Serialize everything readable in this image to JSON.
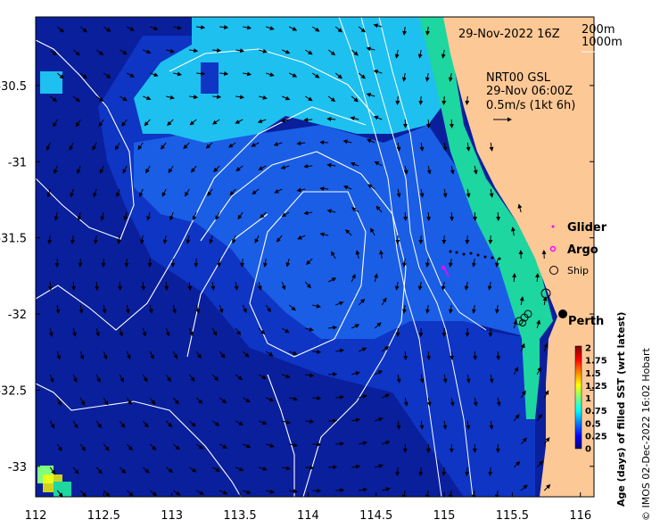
{
  "map": {
    "title": "29-Nov-2022 16Z",
    "iso_label_1": "200m",
    "iso_label_2": "1000m",
    "current_product": "NRT00 GSL",
    "current_time": "29-Nov 06:00Z",
    "current_scale": "0.5m/s (1kt 6h)",
    "x_ticks": [
      "112",
      "112.5",
      "113",
      "113.5",
      "114",
      "114.5",
      "115",
      "115.5",
      "116"
    ],
    "y_ticks": [
      "-30.5",
      "-31",
      "-31.5",
      "-32",
      "-32.5",
      "-33"
    ],
    "lon_range": [
      112,
      116.1
    ],
    "lat_range": [
      -33.2,
      -30.05
    ],
    "legend": {
      "glider": "Glider",
      "argo": "Argo",
      "ship": "Ship"
    },
    "city": "Perth",
    "colorbar": {
      "ticks": [
        "2",
        "1.75",
        "1.5",
        "1.25",
        "1",
        "0.75",
        "0.5",
        "0.25",
        "0"
      ],
      "label": "Age (days) of filled SST (wrt latest)"
    },
    "credit": "© IMOS 02-Dec-2022 16:02 Hobart",
    "colors": {
      "land": "#fcc896",
      "deep": "#0a1f9c",
      "mid_dark": "#0f35c4",
      "mid": "#1a5ee6",
      "light": "#1ec0f0",
      "teal": "#1dd6a0",
      "argo": "#ff00ff",
      "glider": "#ff00ff"
    }
  }
}
